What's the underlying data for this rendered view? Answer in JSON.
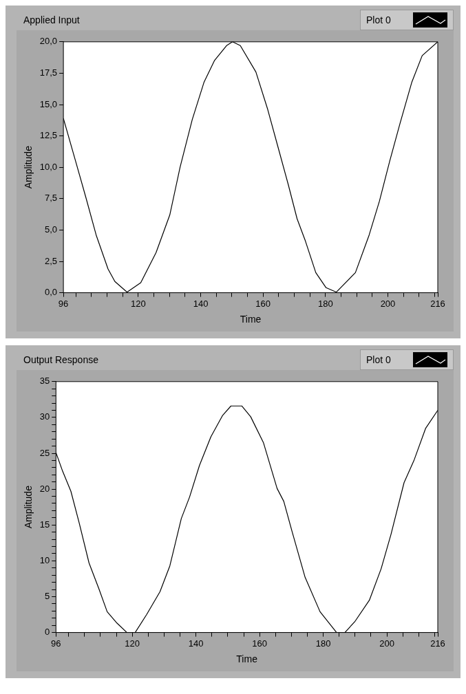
{
  "chart_data": [
    {
      "type": "line",
      "title": "Applied Input",
      "xlabel": "Time",
      "ylabel": "Amplitude",
      "legend": "top right",
      "marker": "none",
      "line_style": "solid",
      "series": [
        {
          "name": "Plot 0",
          "color": "#000000",
          "x": [
            96,
            99.9,
            103.2,
            106.5,
            110.3,
            112.5,
            116.4,
            120.8,
            125.7,
            130.1,
            133.4,
            137.3,
            141.1,
            144.4,
            148.3,
            150.2,
            152.7,
            157.7,
            161.5,
            164.8,
            168.1,
            170.9,
            173.6,
            176.9,
            180.2,
            183.5,
            189.6,
            194,
            197.3,
            200.6,
            203.9,
            207.7,
            211,
            216
          ],
          "values": [
            13.9,
            10.5,
            7.6,
            4.6,
            1.9,
            0.9,
            0.05,
            0.8,
            3.2,
            6.2,
            10,
            13.8,
            16.8,
            18.5,
            19.7,
            20,
            19.7,
            17.6,
            14.6,
            11.6,
            8.6,
            5.9,
            4.1,
            1.6,
            0.4,
            0.05,
            1.6,
            4.6,
            7.3,
            10.5,
            13.5,
            16.8,
            18.9,
            20
          ]
        }
      ],
      "xlim": [
        96,
        216
      ],
      "ylim": [
        0,
        20
      ],
      "xticks": [
        96,
        {
          "value": 100,
          "label": null
        },
        {
          "value": 105,
          "label": null
        },
        {
          "value": 110,
          "label": null
        },
        {
          "value": 115,
          "label": null
        },
        120,
        {
          "value": 125,
          "label": null
        },
        {
          "value": 130,
          "label": null
        },
        {
          "value": 135,
          "label": null
        },
        140,
        {
          "value": 145,
          "label": null
        },
        {
          "value": 150,
          "label": null
        },
        {
          "value": 155,
          "label": null
        },
        160,
        {
          "value": 165,
          "label": null
        },
        {
          "value": 170,
          "label": null
        },
        {
          "value": 175,
          "label": null
        },
        180,
        {
          "value": 185,
          "label": null
        },
        {
          "value": 190,
          "label": null
        },
        {
          "value": 195,
          "label": null
        },
        200,
        {
          "value": 205,
          "label": null
        },
        {
          "value": 210,
          "label": null
        },
        {
          "value": 215,
          "label": null
        },
        216
      ],
      "yticks": [
        {
          "value": 0,
          "label": "0,0"
        },
        {
          "value": 2.5,
          "label": "2,5"
        },
        {
          "value": 5,
          "label": "5,0"
        },
        {
          "value": 7.5,
          "label": "7,5"
        },
        {
          "value": 10,
          "label": "10,0"
        },
        {
          "value": 12.5,
          "label": "12,5"
        },
        {
          "value": 15,
          "label": "15,0"
        },
        {
          "value": 17.5,
          "label": "17,5"
        },
        {
          "value": 20,
          "label": "20,0"
        }
      ],
      "grid": false
    },
    {
      "type": "line",
      "title": "Output Response",
      "xlabel": "Time",
      "ylabel": "Amplitude",
      "legend": "top right",
      "marker": "none",
      "line_style": "solid",
      "series": [
        {
          "name": "Plot 0",
          "color": "#000000",
          "x": [
            96,
            98.1,
            100.7,
            103.3,
            106.4,
            109.5,
            112.1,
            115.2,
            118.3,
            120.9,
            124.5,
            128.7,
            131.8,
            135.4,
            138,
            141.1,
            144.7,
            148.4,
            151,
            154.4,
            157.2,
            161.2,
            165.5,
            167.6,
            170.2,
            174.3,
            179,
            184.2,
            186.8,
            189.9,
            194.5,
            198.2,
            201.3,
            205.4,
            208.6,
            212.2,
            216
          ],
          "values": [
            25.1,
            22.5,
            19.7,
            15.3,
            9.7,
            6.1,
            2.9,
            1.3,
            0,
            0,
            2.5,
            5.7,
            9.3,
            15.9,
            18.9,
            23.3,
            27.3,
            30.3,
            31.6,
            31.6,
            30.1,
            26.5,
            20.1,
            18.3,
            14.1,
            7.7,
            2.9,
            0,
            0,
            1.5,
            4.5,
            8.9,
            13.7,
            20.9,
            24.1,
            28.5,
            31
          ]
        }
      ],
      "xlim": [
        96,
        216
      ],
      "ylim": [
        0,
        35
      ],
      "xticks": [
        96,
        {
          "value": 100,
          "label": null
        },
        {
          "value": 105,
          "label": null
        },
        {
          "value": 110,
          "label": null
        },
        {
          "value": 115,
          "label": null
        },
        120,
        {
          "value": 125,
          "label": null
        },
        {
          "value": 130,
          "label": null
        },
        {
          "value": 135,
          "label": null
        },
        140,
        {
          "value": 145,
          "label": null
        },
        {
          "value": 150,
          "label": null
        },
        {
          "value": 155,
          "label": null
        },
        160,
        {
          "value": 165,
          "label": null
        },
        {
          "value": 170,
          "label": null
        },
        {
          "value": 175,
          "label": null
        },
        180,
        {
          "value": 185,
          "label": null
        },
        {
          "value": 190,
          "label": null
        },
        {
          "value": 195,
          "label": null
        },
        200,
        {
          "value": 205,
          "label": null
        },
        {
          "value": 210,
          "label": null
        },
        {
          "value": 215,
          "label": null
        },
        216
      ],
      "yticks": [
        0,
        {
          "value": 1,
          "label": null
        },
        {
          "value": 2,
          "label": null
        },
        {
          "value": 3,
          "label": null
        },
        {
          "value": 4,
          "label": null
        },
        5,
        {
          "value": 6,
          "label": null
        },
        {
          "value": 7,
          "label": null
        },
        {
          "value": 8,
          "label": null
        },
        {
          "value": 9,
          "label": null
        },
        10,
        {
          "value": 11,
          "label": null
        },
        {
          "value": 12,
          "label": null
        },
        {
          "value": 13,
          "label": null
        },
        {
          "value": 14,
          "label": null
        },
        15,
        {
          "value": 16,
          "label": null
        },
        {
          "value": 17,
          "label": null
        },
        {
          "value": 18,
          "label": null
        },
        {
          "value": 19,
          "label": null
        },
        20,
        {
          "value": 21,
          "label": null
        },
        {
          "value": 22,
          "label": null
        },
        {
          "value": 23,
          "label": null
        },
        {
          "value": 24,
          "label": null
        },
        25,
        {
          "value": 26,
          "label": null
        },
        {
          "value": 27,
          "label": null
        },
        {
          "value": 28,
          "label": null
        },
        {
          "value": 29,
          "label": null
        },
        30,
        {
          "value": 31,
          "label": null
        },
        {
          "value": 32,
          "label": null
        },
        {
          "value": 33,
          "label": null
        },
        {
          "value": 34,
          "label": null
        },
        35
      ],
      "grid": false
    }
  ]
}
